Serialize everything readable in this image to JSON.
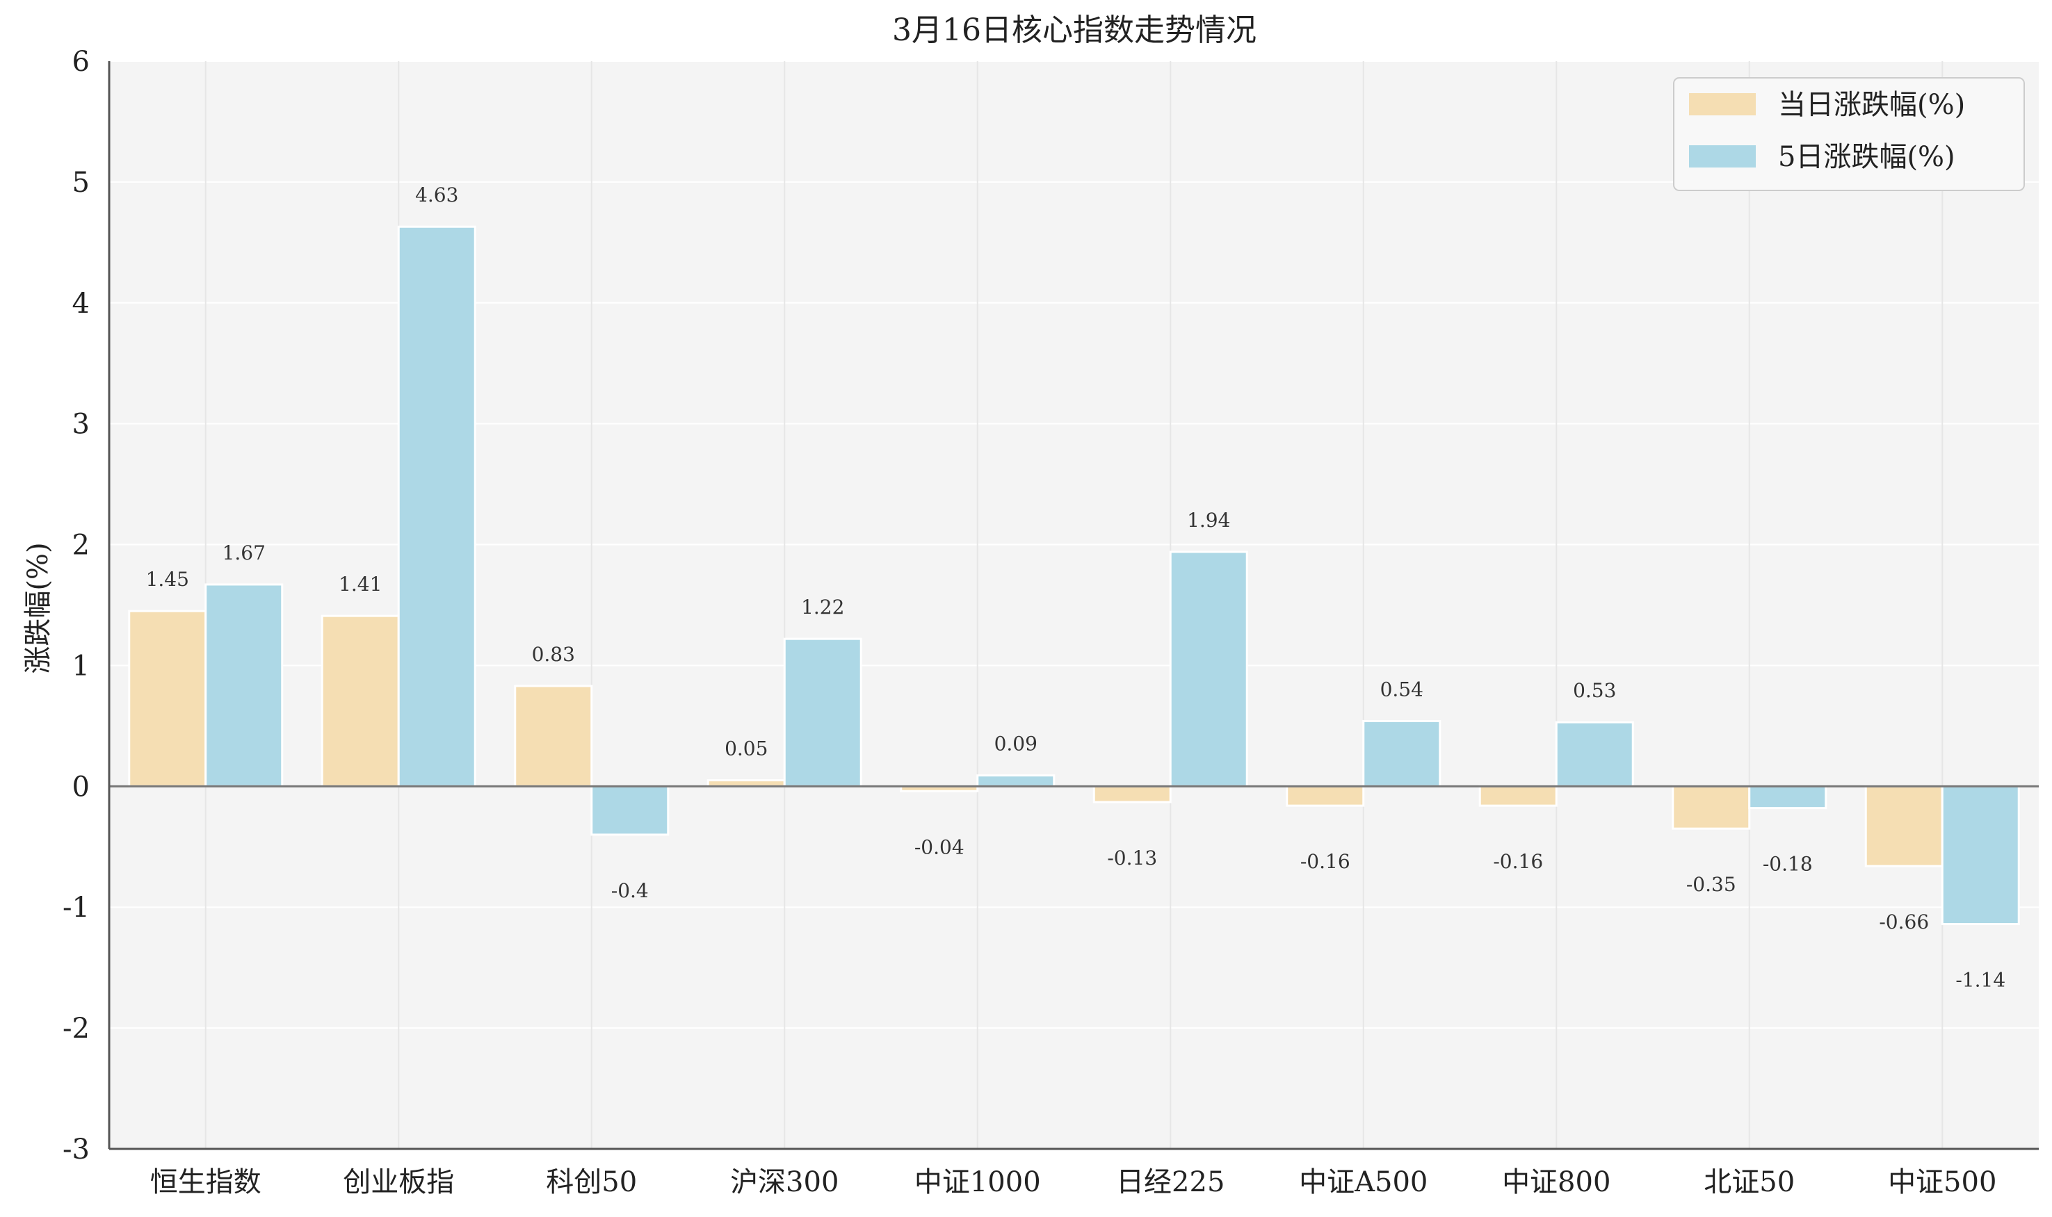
{
  "chart_data": {
    "type": "bar",
    "title": "3月16日核心指数走势情况",
    "ylabel": "涨跌幅(%)",
    "xlabel": "",
    "ylim": [
      -3,
      6
    ],
    "yticks": [
      -3,
      -2,
      -1,
      0,
      1,
      2,
      3,
      4,
      5,
      6
    ],
    "grid": true,
    "legend_position": "top-right",
    "categories": [
      "恒生指数",
      "创业板指",
      "科创50",
      "沪深300",
      "中证1000",
      "日经225",
      "中证A500",
      "中证800",
      "北证50",
      "中证500"
    ],
    "series": [
      {
        "name": "当日涨跌幅(%)",
        "color": "#f5deb3",
        "values": [
          1.45,
          1.41,
          0.83,
          0.05,
          -0.04,
          -0.13,
          -0.16,
          -0.16,
          -0.35,
          -0.66
        ],
        "labels": [
          "1.45",
          "1.41",
          "0.83",
          "0.05",
          "-0.04",
          "-0.13",
          "-0.16",
          "-0.16",
          "-0.35",
          "-0.66"
        ]
      },
      {
        "name": "5日涨跌幅(%)",
        "color": "#add8e6",
        "values": [
          1.67,
          4.63,
          -0.4,
          1.22,
          0.09,
          1.94,
          0.54,
          0.53,
          -0.18,
          -1.14
        ],
        "labels": [
          "1.67",
          "4.63",
          "-0.4",
          "1.22",
          "0.09",
          "1.94",
          "0.54",
          "0.53",
          "-0.18",
          "-1.14"
        ]
      }
    ]
  },
  "colors": {
    "plot_background": "#f4f4f4",
    "grid": "#ffffff",
    "axis": "#555555"
  }
}
